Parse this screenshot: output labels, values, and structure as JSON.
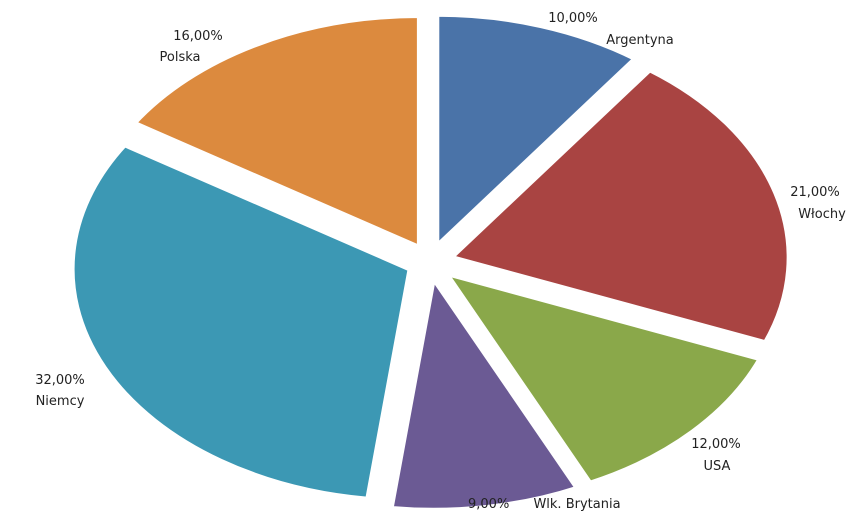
{
  "chart_data": {
    "type": "pie",
    "exploded": true,
    "legend": "none",
    "title": "",
    "slices": [
      {
        "label": "Argentyna",
        "value": 10,
        "value_label": "10,00%",
        "color": "#4a73a8"
      },
      {
        "label": "Włochy",
        "value": 21,
        "value_label": "21,00%",
        "color": "#a94442"
      },
      {
        "label": "USA",
        "value": 12,
        "value_label": "12,00%",
        "color": "#8aa84a"
      },
      {
        "label": "Wlk. Brytania",
        "value": 9,
        "value_label": "9,00%",
        "color": "#6b5a94"
      },
      {
        "label": "Niemcy",
        "value": 32,
        "value_label": "32,00%",
        "color": "#3c98b4"
      },
      {
        "label": "Polska",
        "value": 16,
        "value_label": "16,00%",
        "color": "#dc8a3e"
      }
    ]
  }
}
